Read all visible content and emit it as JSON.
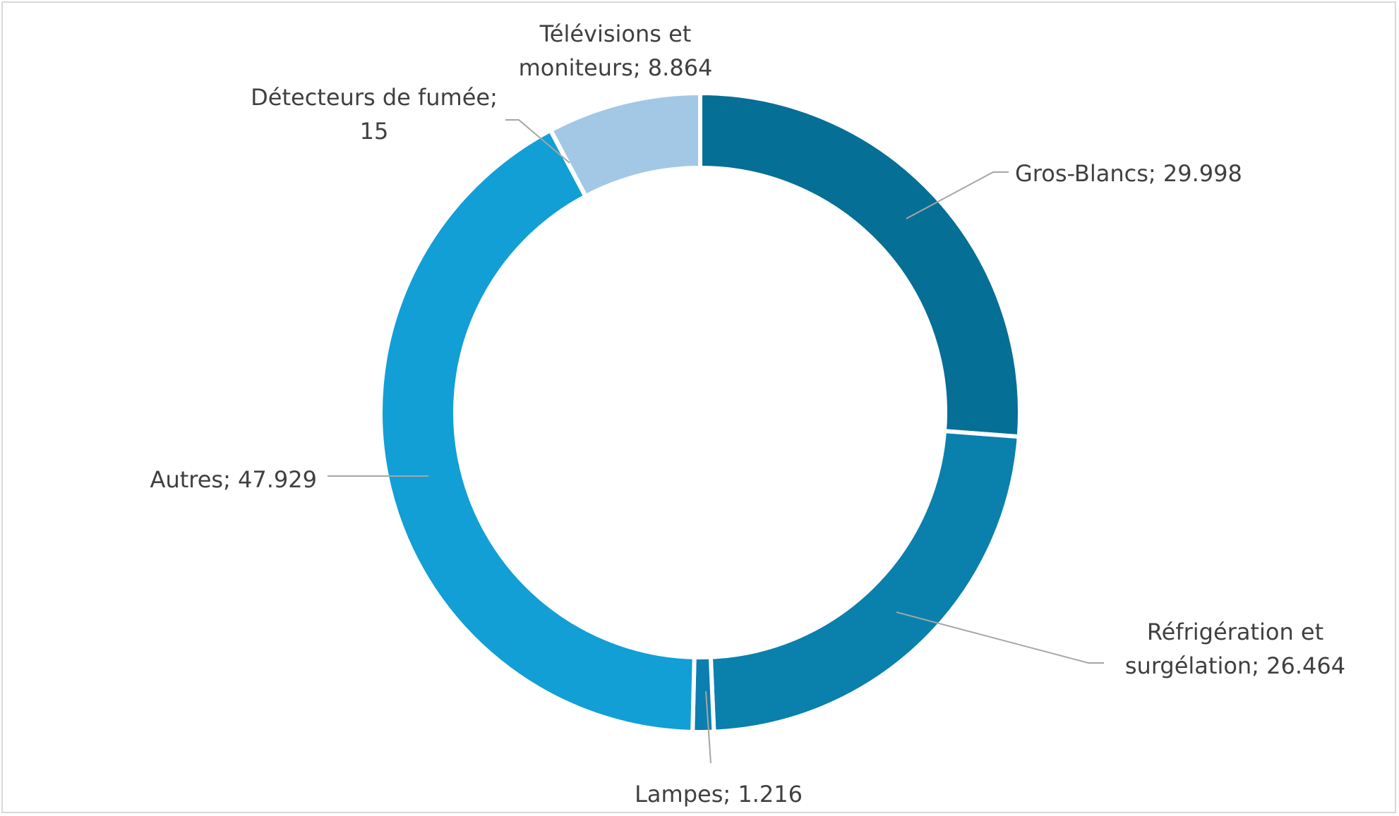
{
  "chart_data": {
    "type": "pie",
    "variant": "donut",
    "legend": "none",
    "slices": [
      {
        "name": "Gros-Blancs",
        "value": 29.998,
        "label_lines": [
          "Gros-Blancs; 29.998"
        ],
        "color": "#066f96"
      },
      {
        "name": "Réfrigération et surgélation",
        "value": 26.464,
        "label_lines": [
          "Réfrigération et",
          "surgélation; 26.464"
        ],
        "color": "#0a80ad"
      },
      {
        "name": "Lampes",
        "value": 1.216,
        "label_lines": [
          "Lampes; 1.216"
        ],
        "color": "#0a7fb0"
      },
      {
        "name": "Autres",
        "value": 47.929,
        "label_lines": [
          "Autres; 47.929"
        ],
        "color": "#119fd6"
      },
      {
        "name": "Détecteurs de fumée",
        "value": 0.015,
        "label_lines": [
          "Détecteurs de fumée;",
          "15"
        ],
        "color": "#1a9fd3"
      },
      {
        "name": "Télévisions et moniteurs",
        "value": 8.864,
        "label_lines": [
          "Télévisions et",
          "moniteurs; 8.864"
        ],
        "color": "#a3c8e6"
      }
    ]
  }
}
